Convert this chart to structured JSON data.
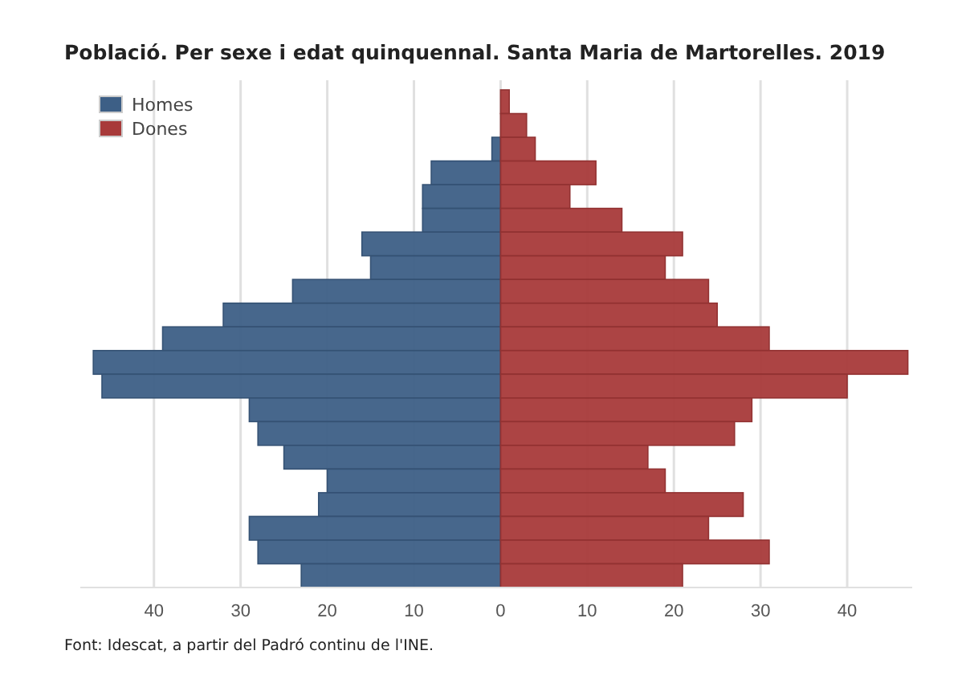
{
  "chart_data": {
    "type": "bar",
    "orientation": "horizontal",
    "title": "Població. Per sexe i edat quinquennal. Santa Maria de Martorelles. 2019",
    "categories": [
      null,
      null,
      null,
      null,
      null,
      null,
      null,
      null,
      null,
      null,
      null,
      null,
      null,
      null,
      null,
      null,
      null,
      null,
      null,
      null,
      null
    ],
    "series": [
      {
        "name": "Homes",
        "color": "#3d5f86",
        "values": [
          0,
          0,
          -1,
          -8,
          -9,
          -9,
          -16,
          -15,
          -24,
          -32,
          -39,
          -47,
          -46,
          -29,
          -28,
          -25,
          -20,
          -21,
          -29,
          -28,
          -23
        ]
      },
      {
        "name": "Dones",
        "color": "#a83a3a",
        "values": [
          1,
          3,
          4,
          11,
          8,
          14,
          21,
          19,
          24,
          25,
          31,
          47,
          40,
          29,
          27,
          17,
          19,
          28,
          24,
          31,
          21
        ]
      }
    ],
    "xlim": [
      -48.5,
      47.5
    ],
    "xticks": [
      {
        "value": -40,
        "label": "40"
      },
      {
        "value": -30,
        "label": "30"
      },
      {
        "value": -20,
        "label": "20"
      },
      {
        "value": -10,
        "label": "10"
      },
      0,
      10,
      20,
      30,
      40
    ],
    "grid": "x",
    "legend": "top left",
    "tick_labels": "x",
    "annotations": [
      "Font: Idescat, a partir del Padró continu de l'INE."
    ]
  }
}
